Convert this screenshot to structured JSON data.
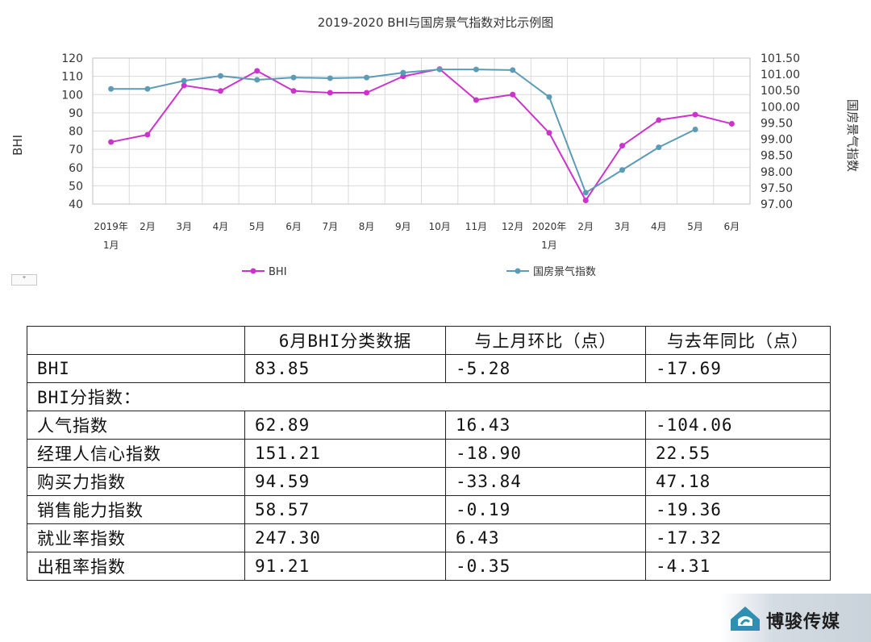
{
  "chart_data": {
    "type": "line",
    "title": "2019-2020 BHI与国房景气指数对比示例图",
    "categories": [
      "2019年1月",
      "2月",
      "3月",
      "4月",
      "5月",
      "6月",
      "7月",
      "8月",
      "9月",
      "10月",
      "11月",
      "12月",
      "2020年1月",
      "2月",
      "3月",
      "4月",
      "5月",
      "6月"
    ],
    "category_lines": [
      [
        "2019年",
        "1月"
      ],
      [
        "2月"
      ],
      [
        "3月"
      ],
      [
        "4月"
      ],
      [
        "5月"
      ],
      [
        "6月"
      ],
      [
        "7月"
      ],
      [
        "8月"
      ],
      [
        "9月"
      ],
      [
        "10月"
      ],
      [
        "11月"
      ],
      [
        "12月"
      ],
      [
        "2020年",
        "1月"
      ],
      [
        "2月"
      ],
      [
        "3月"
      ],
      [
        "4月"
      ],
      [
        "5月"
      ],
      [
        "6月"
      ]
    ],
    "ylabel": "BHI",
    "y2label": "国房景气指数",
    "ylim": [
      40,
      120
    ],
    "y_ticks": [
      "40",
      "50",
      "60",
      "70",
      "80",
      "90",
      "100",
      "110",
      "120"
    ],
    "y2lim": [
      97.0,
      101.5
    ],
    "y2_ticks": [
      "97.00",
      "97.50",
      "98.00",
      "98.50",
      "99.00",
      "99.50",
      "100.00",
      "100.50",
      "101.00",
      "101.50"
    ],
    "grid": true,
    "legend_position": "bottom",
    "series": [
      {
        "name": "BHI",
        "axis": "left",
        "color": "#cc33cc",
        "values": [
          74,
          78,
          105,
          102,
          113,
          102,
          101,
          101,
          110,
          114,
          97,
          100,
          79,
          42,
          72,
          86,
          89,
          84
        ]
      },
      {
        "name": "国房景气指数",
        "axis": "right",
        "color": "#5b9bb5",
        "values": [
          100.55,
          100.55,
          100.8,
          100.95,
          100.83,
          100.9,
          100.88,
          100.9,
          101.05,
          101.15,
          101.15,
          101.13,
          100.3,
          97.35,
          98.05,
          98.75,
          99.3,
          null
        ]
      }
    ]
  },
  "table": {
    "headers": [
      "",
      "6月BHI分类数据",
      "与上月环比（点）",
      "与去年同比（点）"
    ],
    "rows": [
      {
        "label": "BHI",
        "value": "83.85",
        "mom": "-5.28",
        "yoy": "-17.69"
      },
      {
        "section": "BHI分指数："
      },
      {
        "label": "人气指数",
        "value": "62.89",
        "mom": "16.43",
        "yoy": "-104.06"
      },
      {
        "label": "经理人信心指数",
        "value": "151.21",
        "mom": "-18.90",
        "yoy": "22.55"
      },
      {
        "label": "购买力指数",
        "value": "94.59",
        "mom": "-33.84",
        "yoy": "47.18"
      },
      {
        "label": "销售能力指数",
        "value": "58.57",
        "mom": "-0.19",
        "yoy": "-19.36"
      },
      {
        "label": "就业率指数",
        "value": "247.30",
        "mom": "6.43",
        "yoy": "-17.32"
      },
      {
        "label": "出租率指数",
        "value": "91.21",
        "mom": "-0.35",
        "yoy": "-4.31"
      }
    ]
  },
  "ui": {
    "mini_button_symbol": "⁺"
  },
  "watermark": {
    "text": "博骏传媒",
    "icon": "brand-logo-icon"
  }
}
